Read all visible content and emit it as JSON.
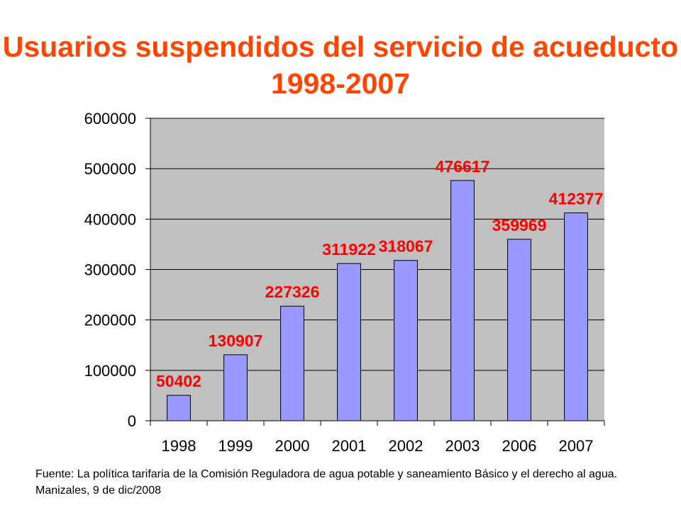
{
  "chart_data": {
    "type": "bar",
    "title": "Usuarios suspendidos del servicio de acueducto 1998-2007",
    "categories": [
      "1998",
      "1999",
      "2000",
      "2001",
      "2002",
      "2003",
      "2006",
      "2007"
    ],
    "values": [
      50402,
      130907,
      227326,
      311922,
      318067,
      476617,
      359969,
      412377
    ],
    "data_labels": [
      "50402",
      "130907",
      "227326",
      "311922",
      "318067",
      "476617",
      "359969",
      "412377"
    ],
    "xlabel": "",
    "ylabel": "",
    "ylim": [
      0,
      600000
    ],
    "y_ticks": [
      0,
      100000,
      200000,
      300000,
      400000,
      500000,
      600000
    ],
    "grid": true,
    "legend": "none",
    "colors": {
      "bar": "#9999ff",
      "plot_background": "#c0c0c0",
      "data_label": "#ff0000",
      "title": "#ff4500"
    }
  },
  "source_note": "Fuente: La política tarifaria de la Comisión Reguladora de agua potable y saneamiento Básico y el derecho al agua. Manizales, 9 de dic/2008"
}
